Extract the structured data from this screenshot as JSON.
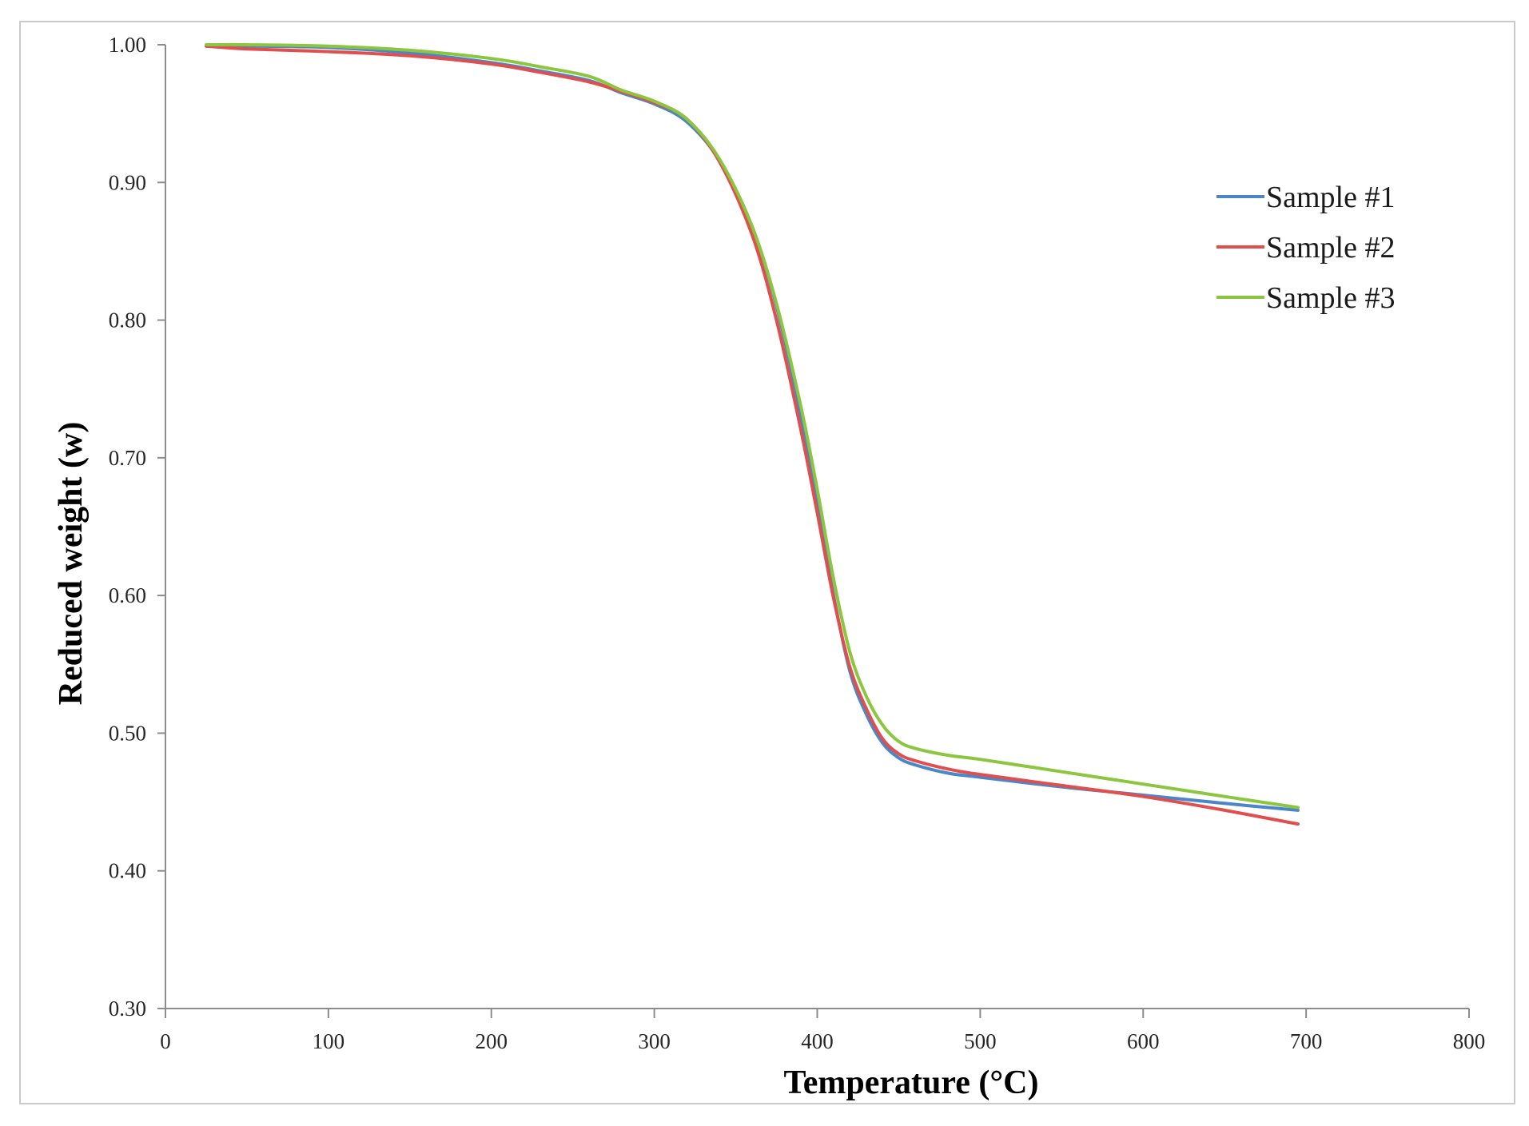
{
  "chart_data": {
    "type": "line",
    "title": "",
    "xlabel": "Temperature (°C)",
    "ylabel": "Reduced weight (w)",
    "xlim": [
      0,
      800
    ],
    "ylim": [
      0.3,
      1.0
    ],
    "x_ticks": [
      0,
      100,
      200,
      300,
      400,
      500,
      600,
      700,
      800
    ],
    "x_tick_labels": [
      "0",
      "100",
      "200",
      "300",
      "400",
      "500",
      "600",
      "700",
      "800"
    ],
    "y_ticks": [
      0.3,
      0.4,
      0.5,
      0.6,
      0.7,
      0.8,
      0.9,
      1.0
    ],
    "y_tick_labels": [
      "0.30",
      "0.40",
      "0.50",
      "0.60",
      "0.70",
      "0.80",
      "0.90",
      "1.00"
    ],
    "grid": false,
    "legend_position": "top-right",
    "series": [
      {
        "name": "Sample #1",
        "color": "#4a86c8",
        "x": [
          25,
          50,
          100,
          150,
          200,
          230,
          260,
          280,
          300,
          320,
          340,
          360,
          375,
          390,
          400,
          410,
          420,
          430,
          440,
          450,
          460,
          480,
          500,
          550,
          600,
          650,
          695
        ],
        "y": [
          0.999,
          0.999,
          0.998,
          0.994,
          0.987,
          0.981,
          0.974,
          0.965,
          0.957,
          0.944,
          0.916,
          0.868,
          0.81,
          0.73,
          0.665,
          0.6,
          0.545,
          0.514,
          0.493,
          0.482,
          0.477,
          0.471,
          0.468,
          0.461,
          0.455,
          0.449,
          0.444
        ]
      },
      {
        "name": "Sample #2",
        "color": "#e04e4e",
        "x": [
          25,
          50,
          100,
          150,
          200,
          230,
          260,
          280,
          300,
          320,
          340,
          360,
          375,
          390,
          400,
          410,
          420,
          430,
          440,
          450,
          460,
          480,
          500,
          550,
          600,
          650,
          695
        ],
        "y": [
          0.999,
          0.997,
          0.995,
          0.992,
          0.986,
          0.98,
          0.973,
          0.966,
          0.958,
          0.946,
          0.915,
          0.862,
          0.8,
          0.72,
          0.66,
          0.598,
          0.548,
          0.518,
          0.496,
          0.485,
          0.48,
          0.474,
          0.47,
          0.462,
          0.454,
          0.444,
          0.434
        ]
      },
      {
        "name": "Sample #3",
        "color": "#8cc63f",
        "x": [
          25,
          50,
          100,
          150,
          200,
          230,
          260,
          280,
          300,
          320,
          340,
          360,
          375,
          390,
          400,
          410,
          420,
          430,
          440,
          450,
          460,
          480,
          500,
          550,
          600,
          650,
          695
        ],
        "y": [
          1.0,
          1.0,
          0.999,
          0.996,
          0.99,
          0.984,
          0.977,
          0.967,
          0.959,
          0.946,
          0.917,
          0.868,
          0.812,
          0.737,
          0.677,
          0.612,
          0.559,
          0.527,
          0.506,
          0.494,
          0.489,
          0.484,
          0.481,
          0.472,
          0.463,
          0.454,
          0.446
        ]
      }
    ]
  }
}
